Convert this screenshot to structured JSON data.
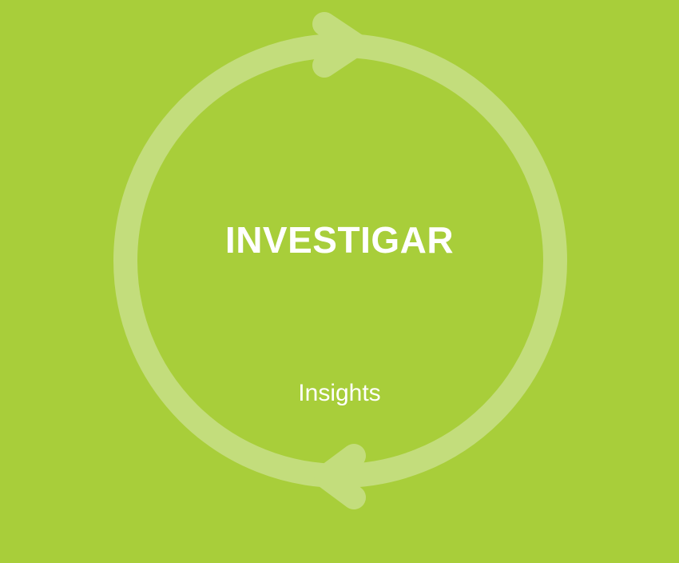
{
  "colors": {
    "background": "#a8ce3a",
    "ring": "#c3dd7c",
    "text": "#ffffff"
  },
  "diagram": {
    "title": "INVESTIGAR",
    "subtitle": "Insights"
  },
  "icons": {
    "top_arrow": "arrowhead-right-icon",
    "bottom_arrow": "arrowhead-left-icon"
  }
}
